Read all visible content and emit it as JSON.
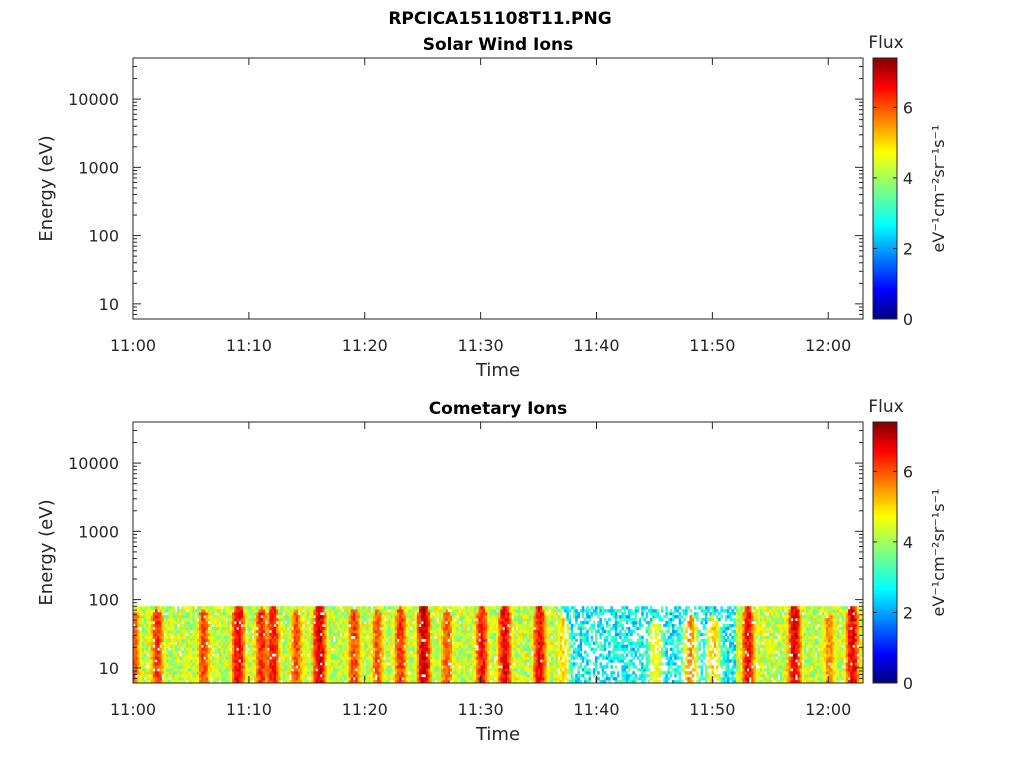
{
  "figure": {
    "title": "RPCICA151108T11.PNG"
  },
  "chart_data": [
    {
      "type": "heatmap",
      "title": "Solar Wind Ions",
      "xlabel": "Time",
      "ylabel": "Energy (eV)",
      "x_ticks": [
        "11:00",
        "11:10",
        "11:20",
        "11:30",
        "11:40",
        "11:50",
        "12:00"
      ],
      "x_range": [
        "11:00",
        "12:03"
      ],
      "y_scale": "log",
      "y_ticks": [
        "10",
        "100",
        "1000",
        "10000"
      ],
      "y_range": [
        6,
        40000
      ],
      "colorbar": {
        "label": "Flux",
        "units_text": "eV⁻¹cm⁻²sr⁻¹s⁻¹",
        "ticks": [
          "0",
          "2",
          "4",
          "6"
        ],
        "range": [
          0,
          7.4
        ],
        "colormap": "jet"
      },
      "grid": false,
      "data": []
    },
    {
      "type": "heatmap",
      "title": "Cometary Ions",
      "xlabel": "Time",
      "ylabel": "Energy (eV)",
      "x_ticks": [
        "11:00",
        "11:10",
        "11:20",
        "11:30",
        "11:40",
        "11:50",
        "12:00"
      ],
      "x_range": [
        "11:00",
        "12:03"
      ],
      "y_scale": "log",
      "y_ticks": [
        "10",
        "100",
        "1000",
        "10000"
      ],
      "y_range": [
        6,
        40000
      ],
      "colorbar": {
        "label": "Flux",
        "units_text": "eV⁻¹cm⁻²sr⁻¹s⁻¹",
        "ticks": [
          "0",
          "2",
          "4",
          "6"
        ],
        "range": [
          0,
          7.4
        ],
        "colormap": "jet"
      },
      "grid": false,
      "energy_band_eV": [
        6,
        80
      ],
      "bursts": [
        {
          "time": "11:00",
          "flux": 6.0
        },
        {
          "time": "11:02",
          "flux": 6.3
        },
        {
          "time": "11:06",
          "flux": 6.1
        },
        {
          "time": "11:09",
          "flux": 6.8
        },
        {
          "time": "11:11",
          "flux": 6.4
        },
        {
          "time": "11:12",
          "flux": 6.6
        },
        {
          "time": "11:14",
          "flux": 6.0
        },
        {
          "time": "11:16",
          "flux": 7.0
        },
        {
          "time": "11:19",
          "flux": 6.2
        },
        {
          "time": "11:21",
          "flux": 6.0
        },
        {
          "time": "11:23",
          "flux": 6.3
        },
        {
          "time": "11:25",
          "flux": 7.1
        },
        {
          "time": "11:27",
          "flux": 6.0
        },
        {
          "time": "11:30",
          "flux": 6.5
        },
        {
          "time": "11:32",
          "flux": 6.8
        },
        {
          "time": "11:35",
          "flux": 6.7
        },
        {
          "time": "11:37",
          "flux": 5.0
        },
        {
          "time": "11:45",
          "flux": 4.8
        },
        {
          "time": "11:48",
          "flux": 5.6
        },
        {
          "time": "11:50",
          "flux": 5.2
        },
        {
          "time": "11:53",
          "flux": 6.6
        },
        {
          "time": "11:57",
          "flux": 6.9
        },
        {
          "time": "12:00",
          "flux": 5.6
        },
        {
          "time": "12:02",
          "flux": 6.8
        }
      ]
    }
  ]
}
